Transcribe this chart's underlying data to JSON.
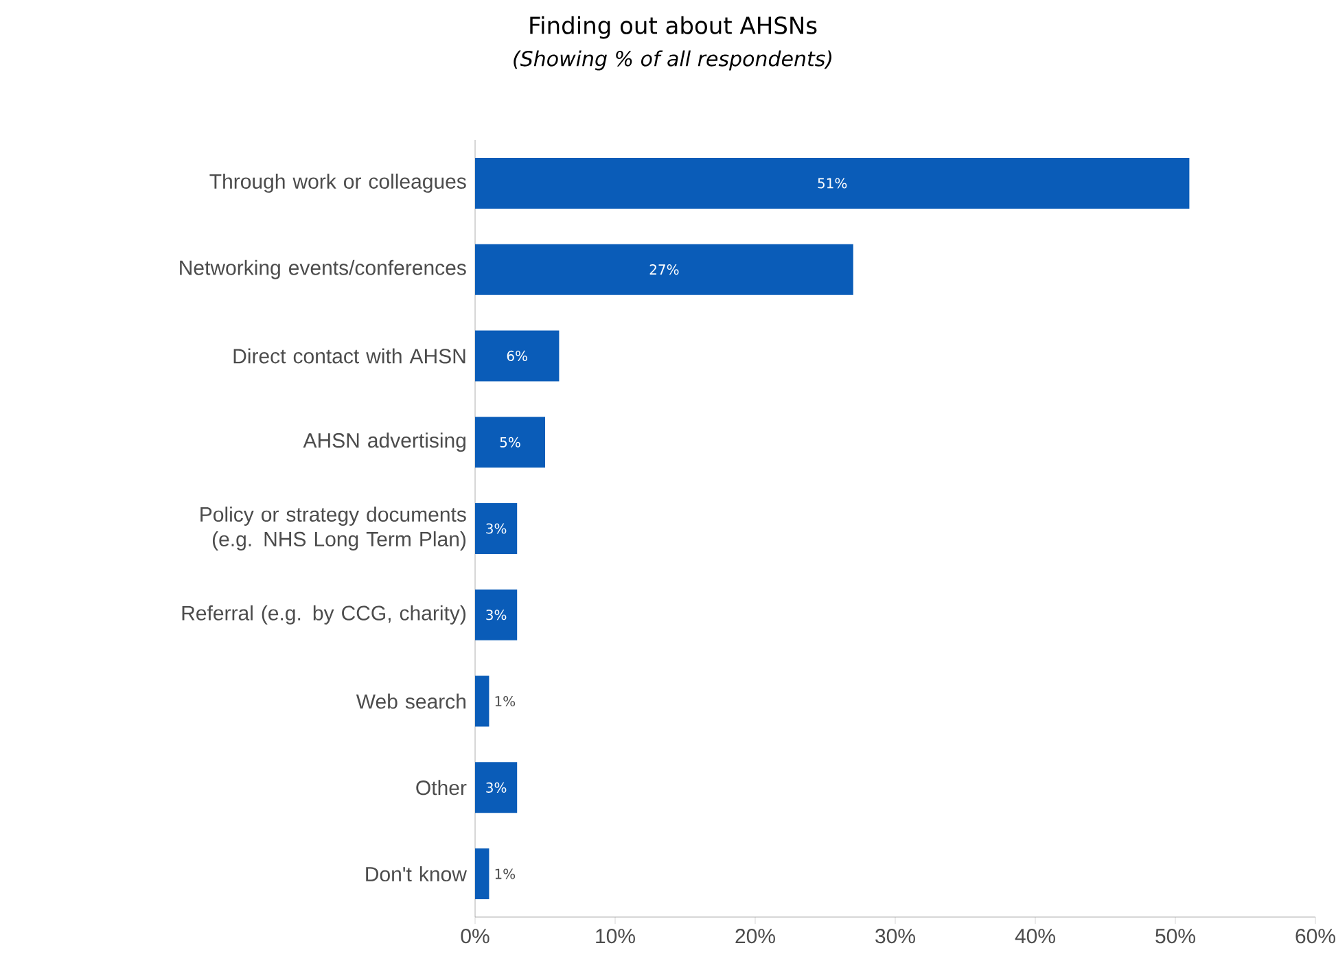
{
  "chart_data": {
    "type": "bar",
    "orientation": "horizontal",
    "title": "Finding out about AHSNs",
    "subtitle": "*(Showing % of all respondents)*",
    "categories": [
      "Through work or colleagues",
      "Networking events/conferences",
      "Direct contact with AHSN",
      "AHSN advertising",
      "Policy or strategy documents (e.g. NHS Long Term Plan)",
      "Referral (e.g. by CCG, charity)",
      "Web search",
      "Other",
      "Don't know"
    ],
    "values": [
      51,
      27,
      6,
      5,
      3,
      3,
      1,
      3,
      1
    ],
    "value_labels": [
      "51%",
      "27%",
      "6%",
      "5%",
      "3%",
      "3%",
      "1%",
      "3%",
      "1%"
    ],
    "color": "#0a5cb8",
    "xlim": [
      0,
      60
    ],
    "xticks": [
      {
        "value": 0,
        "label": "0%"
      },
      {
        "value": 10,
        "label": "10%"
      },
      {
        "value": 20,
        "label": "20%"
      },
      {
        "value": 30,
        "label": "30%"
      },
      {
        "value": 40,
        "label": "40%"
      },
      {
        "value": 50,
        "label": "50%"
      },
      {
        "value": 60,
        "label": "60%"
      }
    ],
    "grid": false
  }
}
